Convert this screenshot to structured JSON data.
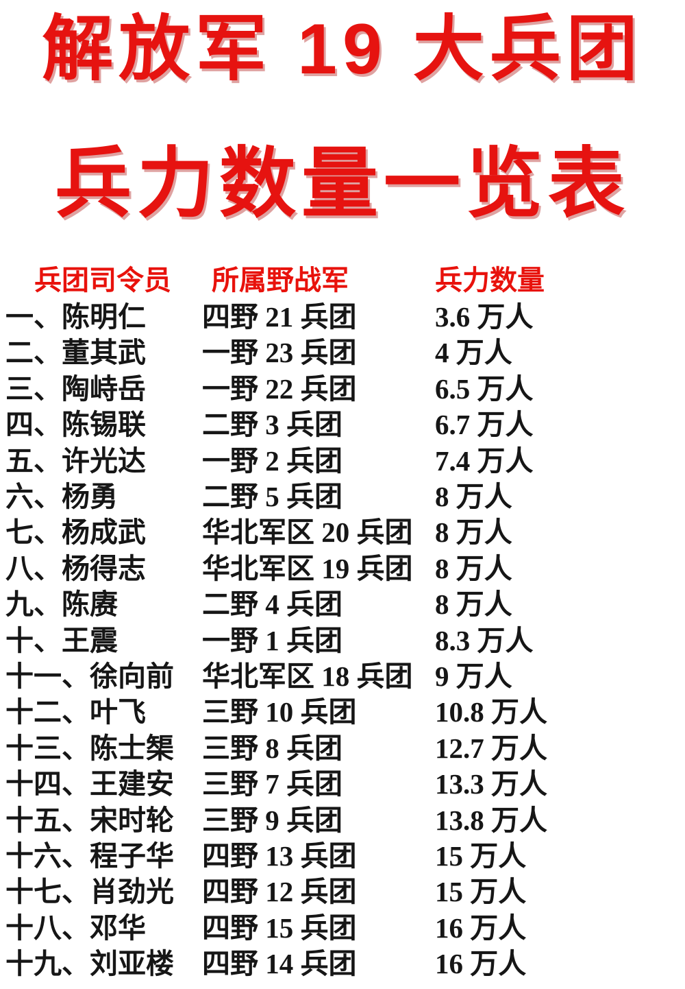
{
  "title": {
    "line1": "解放军 19 大兵团",
    "line2": "兵力数量一览表"
  },
  "colors": {
    "accent_red": "#e61310",
    "text_black": "#161616",
    "background": "#ffffff"
  },
  "table": {
    "headers": [
      "兵团司令员",
      "所属野战军",
      "兵力数量"
    ],
    "rows": [
      {
        "commander": "一、陈明仁",
        "army": "四野 21 兵团",
        "strength": "3.6 万人"
      },
      {
        "commander": "二、董其武",
        "army": "一野 23 兵团",
        "strength": "4 万人"
      },
      {
        "commander": "三、陶峙岳",
        "army": "一野 22 兵团",
        "strength": "6.5 万人"
      },
      {
        "commander": "四、陈锡联",
        "army": "二野 3 兵团",
        "strength": "6.7 万人"
      },
      {
        "commander": "五、许光达",
        "army": "一野 2 兵团",
        "strength": "7.4 万人"
      },
      {
        "commander": "六、杨勇",
        "army": "二野 5 兵团",
        "strength": "8 万人"
      },
      {
        "commander": "七、杨成武",
        "army": "华北军区 20 兵团",
        "strength": "8 万人"
      },
      {
        "commander": "八、杨得志",
        "army": "华北军区 19 兵团",
        "strength": "8 万人"
      },
      {
        "commander": "九、陈赓",
        "army": "二野 4 兵团",
        "strength": "8 万人"
      },
      {
        "commander": "十、王震",
        "army": "一野 1 兵团",
        "strength": "8.3 万人"
      },
      {
        "commander": "十一、徐向前",
        "army": "华北军区 18 兵团",
        "strength": "9 万人"
      },
      {
        "commander": "十二、叶飞",
        "army": "三野 10 兵团",
        "strength": "10.8 万人"
      },
      {
        "commander": "十三、陈士榘",
        "army": "三野 8 兵团",
        "strength": "12.7 万人"
      },
      {
        "commander": "十四、王建安",
        "army": "三野 7 兵团",
        "strength": "13.3 万人"
      },
      {
        "commander": "十五、宋时轮",
        "army": "三野 9 兵团",
        "strength": "13.8 万人"
      },
      {
        "commander": "十六、程子华",
        "army": "四野 13 兵团",
        "strength": "15 万人"
      },
      {
        "commander": "十七、肖劲光",
        "army": "四野 12 兵团",
        "strength": "15 万人"
      },
      {
        "commander": "十八、邓华",
        "army": "四野 15 兵团",
        "strength": "16 万人"
      },
      {
        "commander": "十九、刘亚楼",
        "army": "四野 14 兵团",
        "strength": "16 万人"
      }
    ]
  }
}
